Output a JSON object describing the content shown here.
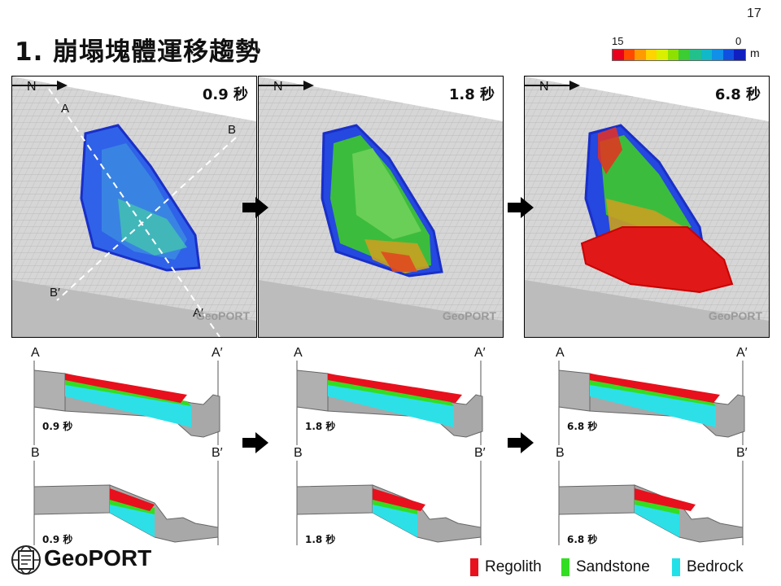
{
  "page_number": "17",
  "title": "1. 崩塌塊體運移趨勢",
  "color_scale": {
    "max_label": "15",
    "min_label": "0",
    "unit": "m",
    "colors": [
      "#e8001c",
      "#ff4a00",
      "#ff9a00",
      "#ffd400",
      "#d9f000",
      "#8ee000",
      "#3ccc33",
      "#22c08a",
      "#10b8c8",
      "#1090e8",
      "#1050e0",
      "#1020c0"
    ]
  },
  "panels": [
    {
      "time": "0.9 秒",
      "label_a": "A",
      "label_b": "B",
      "label_b2": "B′",
      "label_a2": "A′",
      "watermark": "GeoPORT",
      "north_label": "N"
    },
    {
      "time": "1.8 秒",
      "watermark": "GeoPORT",
      "north_label": "N"
    },
    {
      "time": "6.8 秒",
      "watermark": "GeoPORT",
      "north_label": "N"
    }
  ],
  "sections": {
    "aa": [
      {
        "left": "A",
        "right": "A′",
        "time": "0.9 秒"
      },
      {
        "left": "A",
        "right": "A′",
        "time": "1.8 秒"
      },
      {
        "left": "A",
        "right": "A′",
        "time": "6.8 秒"
      }
    ],
    "bb": [
      {
        "left": "B",
        "right": "B′",
        "time": "0.9 秒"
      },
      {
        "left": "B",
        "right": "B′",
        "time": "1.8 秒"
      },
      {
        "left": "B",
        "right": "B′",
        "time": "6.8 秒"
      }
    ]
  },
  "legend": [
    {
      "label": "Regolith",
      "color": "#e8101c"
    },
    {
      "label": "Sandstone",
      "color": "#33dd22"
    },
    {
      "label": "Bedrock",
      "color": "#22e0e8"
    }
  ],
  "logo_text": "GeoPORT",
  "icons": [
    "arrow-right-icon",
    "north-arrow-icon",
    "geoport-logo-icon"
  ]
}
